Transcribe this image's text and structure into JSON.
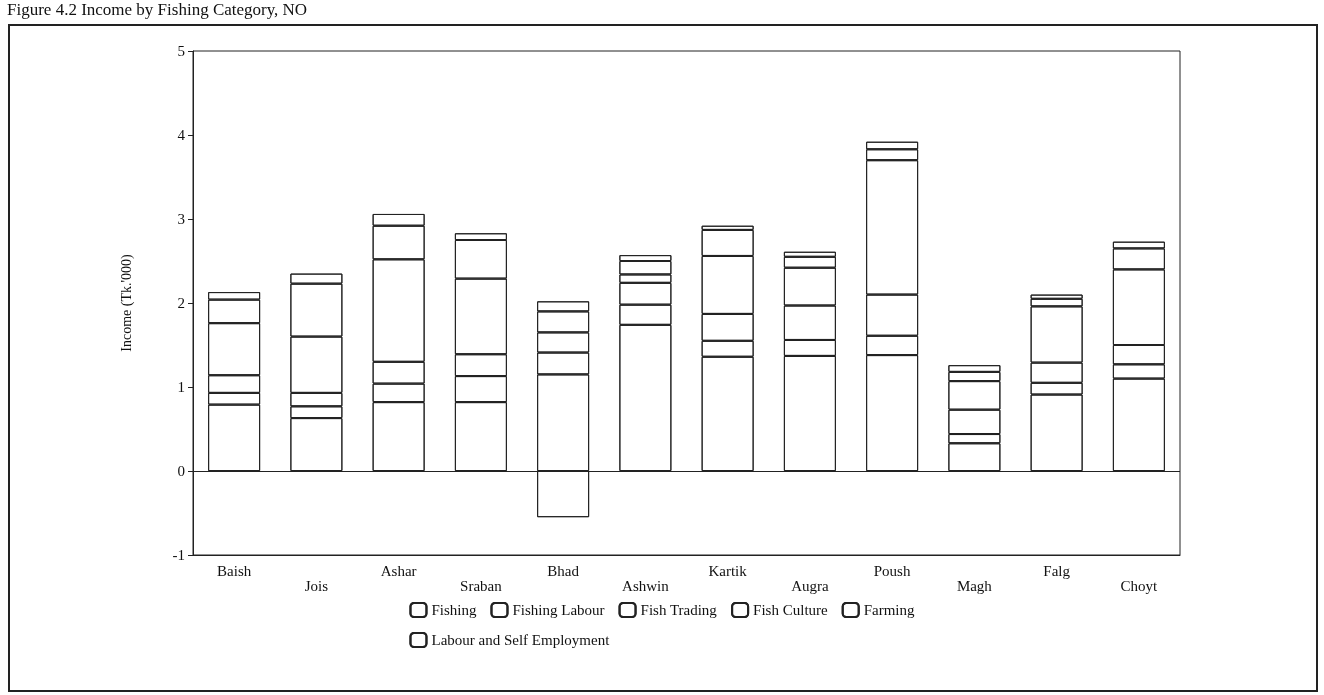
{
  "chart_data": {
    "type": "bar",
    "stacked": true,
    "title": "Figure 4.2 Income by Fishing Category, NO",
    "ylabel": "Income (Tk.'000)",
    "categories": [
      "Baish",
      "Jois",
      "Ashar",
      "Sraban",
      "Bhad",
      "Ashwin",
      "Kartik",
      "Augra",
      "Poush",
      "Magh",
      "Falg",
      "Choyt"
    ],
    "series": [
      {
        "name": "Fishing",
        "color": "#ffffff",
        "values": [
          0.79,
          0.63,
          0.82,
          0.82,
          1.15,
          1.74,
          1.36,
          1.37,
          1.38,
          0.33,
          0.91,
          1.1
        ]
      },
      {
        "name": "Fishing Labour",
        "color": "#ffffff",
        "values": [
          0.14,
          0.14,
          0.22,
          0.31,
          0.26,
          0.24,
          0.19,
          0.19,
          0.23,
          0.11,
          0.14,
          0.17
        ]
      },
      {
        "name": "Fish Trading",
        "color": "#ffffff",
        "values": [
          0.21,
          0.16,
          0.26,
          0.26,
          0.24,
          0.26,
          0.32,
          0.41,
          0.49,
          0.29,
          0.24,
          0.23
        ]
      },
      {
        "name": "Fish Culture",
        "color": "#ffffff",
        "values": [
          0.62,
          0.67,
          1.22,
          0.9,
          -0.55,
          0.1,
          0.69,
          0.45,
          1.6,
          0.34,
          0.67,
          0.9
        ]
      },
      {
        "name": "Farming",
        "color": "#ffffff",
        "values": [
          0.28,
          0.63,
          0.4,
          0.46,
          0.25,
          0.16,
          0.31,
          0.13,
          0.13,
          0.11,
          0.09,
          0.25
        ]
      },
      {
        "name": "Labour and Self Employment",
        "color": "#ffffff",
        "values": [
          0.09,
          0.12,
          0.14,
          0.08,
          0.12,
          0.07,
          0.05,
          0.06,
          0.09,
          0.08,
          0.05,
          0.08
        ]
      }
    ],
    "ylim": [
      -1,
      5
    ],
    "yticks": [
      -1,
      0,
      1,
      2,
      3,
      4,
      5
    ],
    "grid": false,
    "legend": "bottom",
    "ref_lines": [
      {
        "axis": "y",
        "value": 0
      }
    ]
  }
}
